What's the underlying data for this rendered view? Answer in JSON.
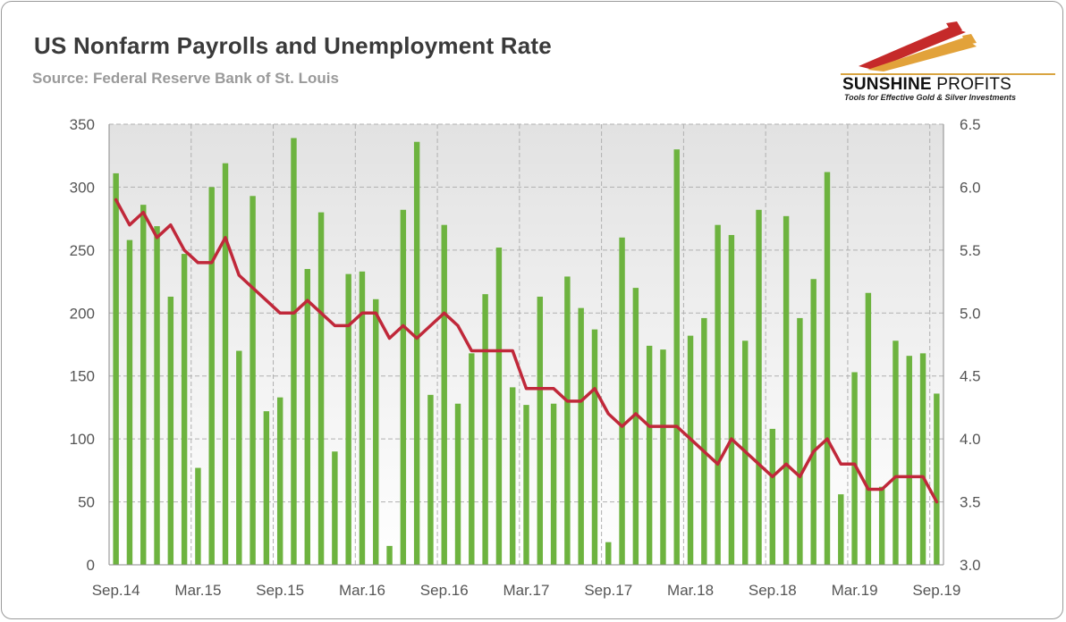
{
  "header": {
    "title": "US Nonfarm Payrolls and Unemployment Rate",
    "subtitle": "Source: Federal Reserve Bank of St. Louis"
  },
  "logo": {
    "name_bold": "SUNSHINE",
    "name_light": "PROFITS",
    "tagline": "Tools for Effective Gold & Silver Investments"
  },
  "chart_data": {
    "type": "bar",
    "x_tick_labels": [
      "Sep.14",
      "Mar.15",
      "Sep.15",
      "Mar.16",
      "Sep.16",
      "Mar.17",
      "Sep.17",
      "Mar.18",
      "Sep.18",
      "Mar.19",
      "Sep.19"
    ],
    "left_axis": {
      "ylim": [
        0,
        350
      ],
      "ticks": [
        0,
        50,
        100,
        150,
        200,
        250,
        300,
        350
      ]
    },
    "right_axis": {
      "ylim": [
        3.0,
        6.5
      ],
      "ticks": [
        "3.0",
        "3.5",
        "4.0",
        "4.5",
        "5.0",
        "5.5",
        "6.0",
        "6.5"
      ]
    },
    "grid": true,
    "legend": "none",
    "colors": {
      "bars": "#6db33f",
      "line": "#c0283a",
      "plot_bg_top": "#e4e4e4",
      "plot_bg_bottom": "#ffffff",
      "grid": "#b0b0b0"
    },
    "series": [
      {
        "type": "bar",
        "axis": "left",
        "values": [
          311,
          258,
          286,
          269,
          213,
          247,
          77,
          300,
          319,
          170,
          293,
          122,
          133,
          339,
          235,
          280,
          90,
          231,
          233,
          211,
          15,
          282,
          336,
          135,
          270,
          128,
          168,
          215,
          252,
          141,
          127,
          213,
          128,
          229,
          204,
          187,
          18,
          260,
          220,
          174,
          171,
          330,
          182,
          196,
          270,
          262,
          178,
          282,
          108,
          277,
          196,
          227,
          312,
          56,
          153,
          216,
          62,
          178,
          166,
          168,
          136
        ]
      },
      {
        "type": "line",
        "axis": "right",
        "values": [
          5.9,
          5.7,
          5.8,
          5.6,
          5.7,
          5.5,
          5.4,
          5.4,
          5.6,
          5.3,
          5.2,
          5.1,
          5.0,
          5.0,
          5.1,
          5.0,
          4.9,
          4.9,
          5.0,
          5.0,
          4.8,
          4.9,
          4.8,
          4.9,
          5.0,
          4.9,
          4.7,
          4.7,
          4.7,
          4.7,
          4.4,
          4.4,
          4.4,
          4.3,
          4.3,
          4.4,
          4.2,
          4.1,
          4.2,
          4.1,
          4.1,
          4.1,
          4.0,
          3.9,
          3.8,
          4.0,
          3.9,
          3.8,
          3.7,
          3.8,
          3.7,
          3.9,
          4.0,
          3.8,
          3.8,
          3.6,
          3.6,
          3.7,
          3.7,
          3.7,
          3.5
        ]
      }
    ]
  }
}
